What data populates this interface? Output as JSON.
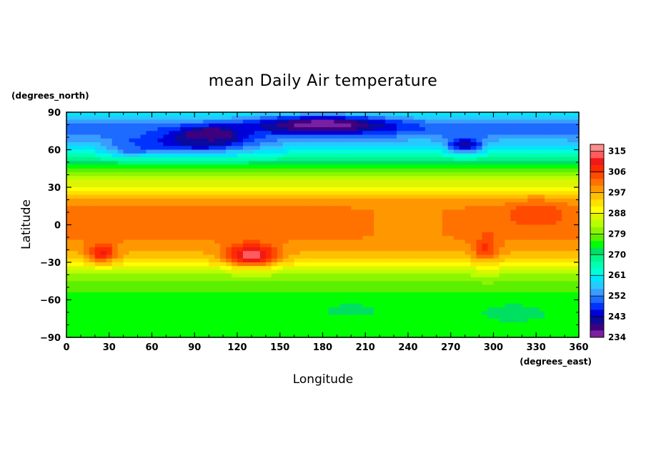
{
  "chart_data": {
    "type": "heatmap",
    "title": "mean Daily Air temperature",
    "xlabel": "Longitude",
    "ylabel": "Latitude",
    "x_units": "(degrees_east)",
    "y_units": "(degrees_north)",
    "xlim": [
      0,
      360
    ],
    "ylim": [
      -90,
      90
    ],
    "x_ticks": [
      "0",
      "30",
      "60",
      "90",
      "120",
      "150",
      "180",
      "210",
      "240",
      "270",
      "300",
      "330",
      "360"
    ],
    "y_ticks": [
      "90",
      "60",
      "30",
      "0",
      "−30",
      "−60",
      "−90"
    ],
    "colorbar": {
      "labels": [
        "315",
        "306",
        "297",
        "288",
        "279",
        "270",
        "261",
        "252",
        "243",
        "234"
      ],
      "levels": [
        234,
        237,
        240,
        243,
        246,
        249,
        252,
        255,
        258,
        261,
        264,
        267,
        270,
        273,
        276,
        279,
        282,
        285,
        288,
        291,
        294,
        297,
        300,
        303,
        306,
        309,
        312,
        315,
        318
      ],
      "colors": [
        "#7b1fa2",
        "#3d007f",
        "#0a0a9e",
        "#0000d8",
        "#0033ff",
        "#1e6bff",
        "#3a9cff",
        "#27c9ff",
        "#00e5ff",
        "#00ffd9",
        "#00ffb0",
        "#00f58a",
        "#00e060",
        "#00ff00",
        "#5cf000",
        "#8ef500",
        "#b8ff00",
        "#ddf500",
        "#ffff00",
        "#ffe000",
        "#ffc000",
        "#ff9800",
        "#ff7200",
        "#ff4a00",
        "#ff2a00",
        "#f01818",
        "#ff5c5c",
        "#ff8d8d"
      ]
    },
    "regions": [
      {
        "kind": "zonal",
        "lat_profile": [
          [
            90,
            262
          ],
          [
            84,
            256
          ],
          [
            78,
            250
          ],
          [
            72,
            252
          ],
          [
            66,
            256
          ],
          [
            60,
            261
          ],
          [
            54,
            266
          ],
          [
            48,
            272
          ],
          [
            42,
            278
          ],
          [
            36,
            284
          ],
          [
            30,
            288
          ],
          [
            24,
            294
          ],
          [
            18,
            298
          ],
          [
            12,
            301
          ],
          [
            6,
            302
          ],
          [
            0,
            302
          ],
          [
            -6,
            302
          ],
          [
            -12,
            300
          ],
          [
            -18,
            298
          ],
          [
            -24,
            296
          ],
          [
            -30,
            292
          ],
          [
            -36,
            285
          ],
          [
            -42,
            280
          ],
          [
            -48,
            278
          ],
          [
            -54,
            276
          ],
          [
            -60,
            275
          ],
          [
            -66,
            275
          ],
          [
            -72,
            274
          ],
          [
            -78,
            274
          ],
          [
            -84,
            275
          ],
          [
            -90,
            276
          ]
        ]
      },
      {
        "kind": "blob",
        "lon": 180,
        "lat": 80,
        "rlon": 50,
        "rlat": 7,
        "temp": 234
      },
      {
        "kind": "blob",
        "lon": 100,
        "lat": 72,
        "rlon": 18,
        "rlat": 6,
        "temp": 235
      },
      {
        "kind": "blob",
        "lon": 90,
        "lat": 66,
        "rlon": 45,
        "rlat": 9,
        "temp": 243
      },
      {
        "kind": "blob",
        "lon": 280,
        "lat": 64,
        "rlon": 12,
        "rlat": 6,
        "temp": 240
      },
      {
        "kind": "blob",
        "lon": 45,
        "lat": 62,
        "rlon": 15,
        "rlat": 7,
        "temp": 252
      },
      {
        "kind": "blob",
        "lon": 130,
        "lat": -24,
        "rlon": 18,
        "rlat": 9,
        "temp": 315
      },
      {
        "kind": "blob",
        "lon": 25,
        "lat": -22,
        "rlon": 10,
        "rlat": 8,
        "temp": 310
      },
      {
        "kind": "blob",
        "lon": 295,
        "lat": -20,
        "rlon": 9,
        "rlat": 12,
        "temp": 307
      },
      {
        "kind": "blob",
        "lon": 295,
        "lat": -35,
        "rlon": 8,
        "rlat": 8,
        "temp": 284
      },
      {
        "kind": "blob",
        "lon": 330,
        "lat": 10,
        "rlon": 20,
        "rlat": 10,
        "temp": 305
      },
      {
        "kind": "blob",
        "lon": 240,
        "lat": 0,
        "rlon": 30,
        "rlat": 18,
        "temp": 298
      },
      {
        "kind": "blob",
        "lon": 315,
        "lat": -70,
        "rlon": 20,
        "rlat": 6,
        "temp": 270
      },
      {
        "kind": "blob",
        "lon": 200,
        "lat": -68,
        "rlon": 20,
        "rlat": 5,
        "temp": 271
      }
    ]
  }
}
